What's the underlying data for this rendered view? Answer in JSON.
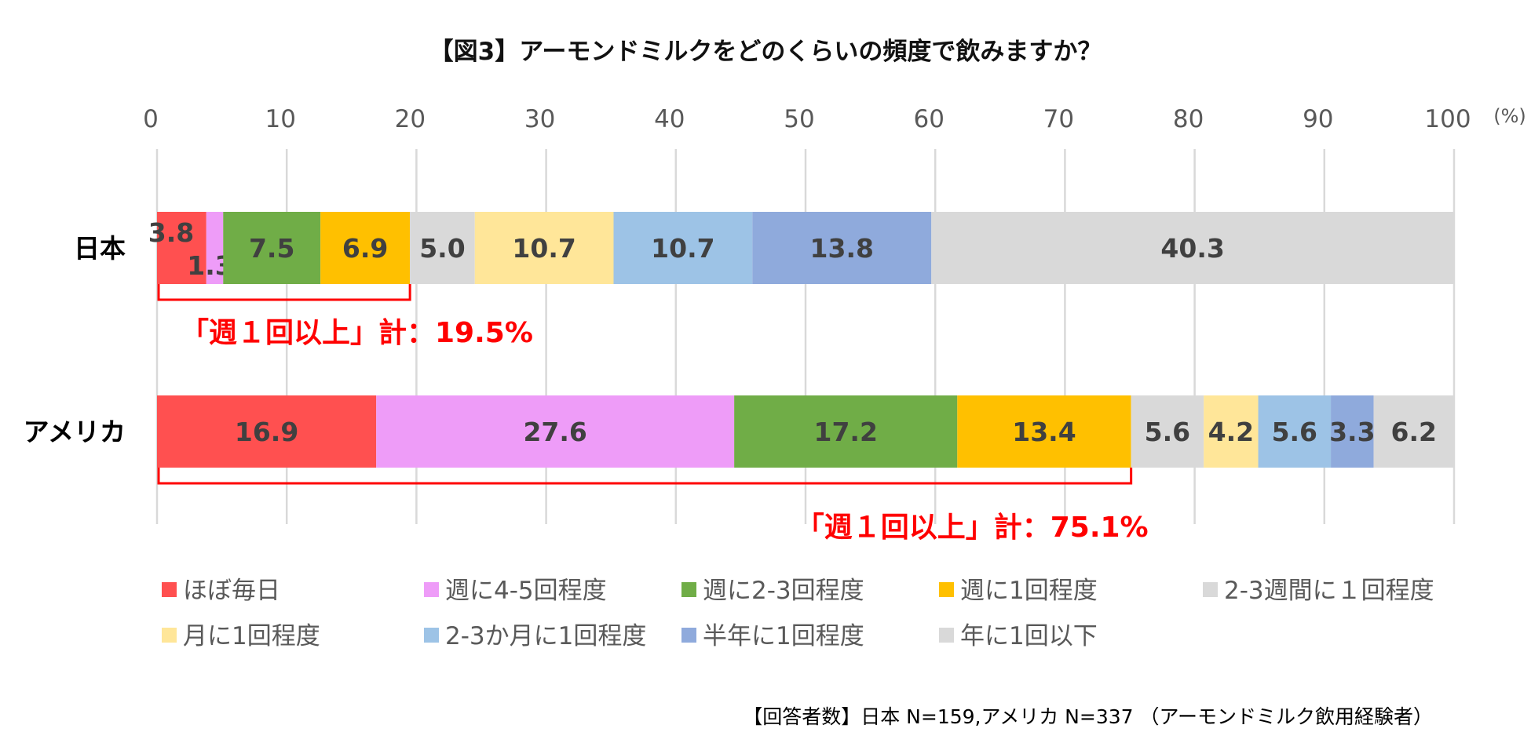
{
  "chart_data": {
    "type": "bar",
    "orientation": "horizontal",
    "stacked": true,
    "title": "【図3】アーモンドミルクをどのくらいの頻度で飲みますか？",
    "unit_label": "(%)",
    "xlim": [
      0,
      100
    ],
    "x_ticks": [
      "0",
      "10",
      "20",
      "30",
      "40",
      "50",
      "60",
      "70",
      "80",
      "90",
      "100"
    ],
    "grid": true,
    "categories": [
      "日本",
      "アメリカ"
    ],
    "series": [
      {
        "name": "ほぼ毎日",
        "color": "#ff5050",
        "values": [
          3.8,
          16.9
        ],
        "labels": [
          "3.8",
          "16.9"
        ]
      },
      {
        "name": "週に4-5回程度",
        "color": "#ee9cf8",
        "values": [
          1.3,
          27.6
        ],
        "labels": [
          "1.3",
          "27.6"
        ]
      },
      {
        "name": "週に2-3回程度",
        "color": "#70ad47",
        "values": [
          7.5,
          17.2
        ],
        "labels": [
          "7.5",
          "17.2"
        ]
      },
      {
        "name": "週に1回程度",
        "color": "#ffc000",
        "values": [
          6.9,
          13.4
        ],
        "labels": [
          "6.9",
          "13.4"
        ]
      },
      {
        "name": "2-3週間に１回程度",
        "color": "#d9d9d9",
        "values": [
          5.0,
          5.6
        ],
        "labels": [
          "5.0",
          "5.6"
        ]
      },
      {
        "name": "月に1回程度",
        "color": "#ffe699",
        "values": [
          10.7,
          4.2
        ],
        "labels": [
          "10.7",
          "4.2"
        ]
      },
      {
        "name": "2-3か月に1回程度",
        "color": "#9dc3e6",
        "values": [
          10.7,
          5.6
        ],
        "labels": [
          "10.7",
          "5.6"
        ]
      },
      {
        "name": "半年に1回程度",
        "color": "#8faadc",
        "values": [
          13.8,
          3.3
        ],
        "labels": [
          "13.8",
          "3.3"
        ]
      },
      {
        "name": "年に1回以下",
        "color": "#d9d9d9",
        "values": [
          40.3,
          6.2
        ],
        "labels": [
          "40.3",
          "6.2"
        ]
      }
    ],
    "annotations": [
      {
        "category": "日本",
        "from": 0,
        "to": 19.5,
        "text": "「週１回以上」計：19.5%",
        "color": "#ff0000"
      },
      {
        "category": "アメリカ",
        "from": 0,
        "to": 75.1,
        "text": "「週１回以上」計：75.1%",
        "color": "#ff0000"
      }
    ],
    "legend_position": "bottom"
  },
  "footnote": "【回答者数】日本 N=159,アメリカ N=337 （アーモンドミルク飲用経験者）"
}
